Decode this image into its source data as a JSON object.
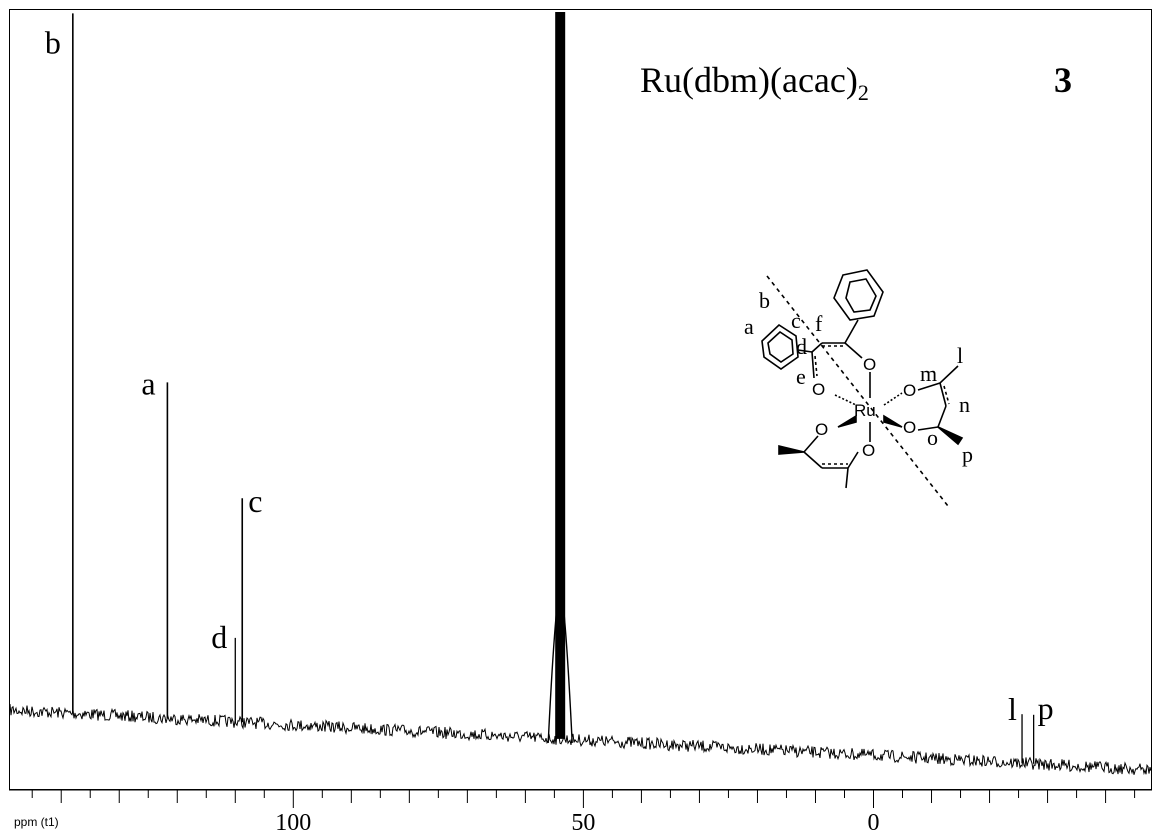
{
  "chart_data": {
    "type": "line",
    "title": "Ru(dbm)(acac)",
    "title_subscript": "2",
    "compound_number": "3",
    "xlabel": "ppm (t1)",
    "x_reversed": true,
    "xlim": [
      149,
      -48
    ],
    "x_ticks": [
      100,
      50,
      0
    ],
    "peaks": [
      {
        "label": "b",
        "ppm": 138.0,
        "rel_height": 1.0
      },
      {
        "label": "a",
        "ppm": 121.7,
        "rel_height": 0.48
      },
      {
        "label": "d",
        "ppm": 110.0,
        "rel_height": 0.12
      },
      {
        "label": "c",
        "ppm": 108.8,
        "rel_height": 0.32
      },
      {
        "label": "",
        "ppm": 54.0,
        "rel_height": 1.4
      },
      {
        "label": "l",
        "ppm": -25.6,
        "rel_height": 0.07
      },
      {
        "label": "p",
        "ppm": -27.6,
        "rel_height": 0.07
      }
    ],
    "structure_labels": [
      "a",
      "b",
      "c",
      "d",
      "e",
      "f",
      "l",
      "m",
      "n",
      "o",
      "p"
    ],
    "atom_labels": {
      "metal": "Ru",
      "oxygen": "O"
    }
  }
}
